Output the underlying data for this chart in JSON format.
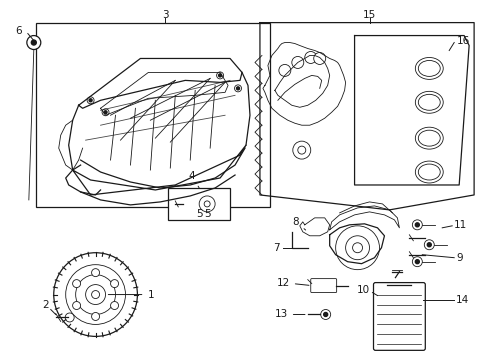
{
  "bg_color": "#ffffff",
  "fig_width": 4.9,
  "fig_height": 3.6,
  "dpi": 100,
  "line_color": "#1a1a1a",
  "label_fontsize": 7.5,
  "label_color": "#111111"
}
